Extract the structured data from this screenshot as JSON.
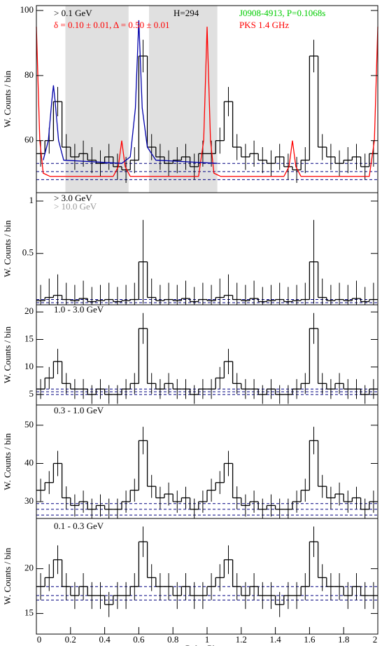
{
  "chart_data": [
    {
      "type": "histogram",
      "ylabel": "W. Counts / bin",
      "annotations": [
        {
          "text": "> 0.1 GeV",
          "color": "#000000"
        },
        {
          "text": "H=294",
          "color": "#000000"
        },
        {
          "text": "δ = 0.10 ± 0.01, Δ = 0.50 ± 0.01",
          "color": "#ff0000"
        },
        {
          "text": "J0908-4913, P=0.1068s",
          "color": "#00cc00"
        },
        {
          "text": "PKS 1.4 GHz",
          "color": "#ff0000"
        }
      ],
      "bins": [
        0,
        0.05,
        0.1,
        0.15,
        0.2,
        0.25,
        0.3,
        0.35,
        0.4,
        0.45,
        0.5,
        0.55,
        0.6,
        0.65,
        0.7,
        0.75,
        0.8,
        0.85,
        0.9,
        0.95,
        1,
        1.05,
        1.1,
        1.15,
        1.2,
        1.25,
        1.3,
        1.35,
        1.4,
        1.45,
        1.5,
        1.55,
        1.6,
        1.65,
        1.7,
        1.75,
        1.8,
        1.85,
        1.9,
        1.95,
        2
      ],
      "counts": [
        56,
        60,
        72,
        58,
        55,
        56,
        54,
        53,
        55,
        52,
        51,
        54,
        86,
        58,
        55,
        53,
        54,
        55,
        52,
        56,
        56,
        60,
        72,
        58,
        55,
        56,
        54,
        53,
        55,
        52,
        51,
        54,
        86,
        58,
        55,
        53,
        54,
        55,
        52,
        56
      ],
      "errors": [
        4,
        4,
        4.5,
        4,
        4,
        4,
        4,
        4,
        4,
        4,
        4,
        4,
        5,
        4,
        4,
        4,
        4,
        4,
        4,
        4,
        4,
        4,
        4.5,
        4,
        4,
        4,
        4,
        4,
        4,
        4,
        4,
        4,
        5,
        4,
        4,
        4,
        4,
        4,
        4,
        4
      ],
      "reference_lines": [
        53,
        50.5,
        48
      ],
      "shaded_regions": [
        [
          0.17,
          0.54
        ],
        [
          0.66,
          1.06
        ]
      ],
      "series": [
        {
          "color": "#ff0000",
          "x": [
            0,
            0.02,
            0.04,
            0.08,
            0.45,
            0.48,
            0.5,
            0.52,
            0.55,
            0.95,
            0.98,
            1,
            1.02,
            1.04,
            1.08,
            1.45,
            1.48,
            1.5,
            1.52,
            1.55,
            1.95,
            1.98,
            2
          ],
          "values": [
            95,
            60,
            50,
            49,
            49,
            52,
            60,
            52,
            49,
            49,
            60,
            95,
            60,
            50,
            49,
            49,
            52,
            60,
            52,
            49,
            49,
            60,
            95
          ]
        },
        {
          "color": "#0000aa",
          "x": [
            0.04,
            0.07,
            0.09,
            0.1,
            0.11,
            0.13,
            0.16,
            0.5,
            0.55,
            0.58,
            0.6,
            0.62,
            0.65,
            0.7,
            1.06
          ],
          "values": [
            54,
            60,
            72,
            77,
            72,
            60,
            54,
            53,
            55,
            70,
            97,
            70,
            58,
            54,
            53
          ]
        }
      ],
      "xlim": [
        0,
        2
      ],
      "ylim": [
        44,
        101.5
      ],
      "yticks": [
        60,
        80,
        100
      ]
    },
    {
      "type": "histogram",
      "ylabel": "W. Counts / bin",
      "annotations": [
        {
          "text": "> 3.0 GeV",
          "color": "#000000"
        },
        {
          "text": "> 10.0 GeV",
          "color": "#999999"
        }
      ],
      "bins": [
        0,
        0.05,
        0.1,
        0.15,
        0.2,
        0.25,
        0.3,
        0.35,
        0.4,
        0.45,
        0.5,
        0.55,
        0.6,
        0.65,
        0.7,
        0.75,
        0.8,
        0.85,
        0.9,
        0.95,
        1,
        1.05,
        1.1,
        1.15,
        1.2,
        1.25,
        1.3,
        1.35,
        1.4,
        1.45,
        1.5,
        1.55,
        1.6,
        1.65,
        1.7,
        1.75,
        1.8,
        1.85,
        1.9,
        1.95,
        2
      ],
      "counts": [
        0.05,
        0.08,
        0.1,
        0.06,
        0.05,
        0.07,
        0.04,
        0.05,
        0.06,
        0.04,
        0.05,
        0.06,
        0.42,
        0.08,
        0.05,
        0.06,
        0.05,
        0.07,
        0.04,
        0.06,
        0.05,
        0.08,
        0.1,
        0.06,
        0.05,
        0.07,
        0.04,
        0.05,
        0.06,
        0.04,
        0.05,
        0.06,
        0.42,
        0.08,
        0.05,
        0.06,
        0.05,
        0.07,
        0.04,
        0.06
      ],
      "errors": [
        0.15,
        0.18,
        0.2,
        0.16,
        0.15,
        0.17,
        0.14,
        0.15,
        0.16,
        0.14,
        0.15,
        0.16,
        0.4,
        0.18,
        0.15,
        0.16,
        0.15,
        0.17,
        0.14,
        0.16,
        0.15,
        0.18,
        0.2,
        0.16,
        0.15,
        0.17,
        0.14,
        0.15,
        0.16,
        0.14,
        0.15,
        0.16,
        0.4,
        0.18,
        0.15,
        0.16,
        0.15,
        0.17,
        0.14,
        0.16
      ],
      "reference_lines": [
        0.03,
        0.06
      ],
      "xlim": [
        0,
        2
      ],
      "ylim": [
        0.01,
        1.08
      ],
      "yticks": [
        0.5,
        1
      ]
    },
    {
      "type": "histogram",
      "ylabel": "W. Counts / bin",
      "annotations": [
        {
          "text": "1.0 - 3.0 GeV",
          "color": "#000000"
        }
      ],
      "bins": [
        0,
        0.05,
        0.1,
        0.15,
        0.2,
        0.25,
        0.3,
        0.35,
        0.4,
        0.45,
        0.5,
        0.55,
        0.6,
        0.65,
        0.7,
        0.75,
        0.8,
        0.85,
        0.9,
        0.95,
        1,
        1.05,
        1.1,
        1.15,
        1.2,
        1.25,
        1.3,
        1.35,
        1.4,
        1.45,
        1.5,
        1.55,
        1.6,
        1.65,
        1.7,
        1.75,
        1.8,
        1.85,
        1.9,
        1.95,
        2
      ],
      "counts": [
        6,
        8,
        11,
        7,
        6,
        6,
        5,
        6,
        5,
        5,
        6,
        7,
        17,
        7,
        6,
        7,
        6,
        6,
        5,
        6,
        6,
        8,
        11,
        7,
        6,
        6,
        5,
        6,
        5,
        5,
        6,
        7,
        17,
        7,
        6,
        7,
        6,
        6,
        5,
        6
      ],
      "errors": [
        1.8,
        2,
        2.3,
        1.9,
        1.8,
        1.8,
        1.7,
        1.8,
        1.7,
        1.7,
        1.8,
        1.9,
        2.8,
        1.9,
        1.8,
        1.9,
        1.8,
        1.8,
        1.7,
        1.8,
        1.8,
        2,
        2.3,
        1.9,
        1.8,
        1.8,
        1.7,
        1.8,
        1.7,
        1.7,
        1.8,
        1.9,
        2.8,
        1.9,
        1.8,
        1.9,
        1.8,
        1.8,
        1.7,
        1.8
      ],
      "reference_lines": [
        5,
        5.5,
        6
      ],
      "xlim": [
        0,
        2
      ],
      "ylim": [
        3.1,
        21.3
      ],
      "yticks": [
        5,
        10,
        15,
        20
      ]
    },
    {
      "type": "histogram",
      "ylabel": "W. Counts / bin",
      "annotations": [
        {
          "text": "0.3 - 1.0 GeV",
          "color": "#000000"
        }
      ],
      "bins": [
        0,
        0.05,
        0.1,
        0.15,
        0.2,
        0.25,
        0.3,
        0.35,
        0.4,
        0.45,
        0.5,
        0.55,
        0.6,
        0.65,
        0.7,
        0.75,
        0.8,
        0.85,
        0.9,
        0.95,
        1,
        1.05,
        1.1,
        1.15,
        1.2,
        1.25,
        1.3,
        1.35,
        1.4,
        1.45,
        1.5,
        1.55,
        1.6,
        1.65,
        1.7,
        1.75,
        1.8,
        1.85,
        1.9,
        1.95,
        2
      ],
      "counts": [
        33,
        35,
        40,
        31,
        29,
        30,
        28,
        29,
        28,
        28,
        30,
        33,
        46,
        34,
        31,
        32,
        30,
        31,
        28,
        30,
        33,
        35,
        40,
        31,
        29,
        30,
        28,
        29,
        28,
        28,
        30,
        33,
        46,
        34,
        31,
        32,
        30,
        31,
        28,
        30
      ],
      "errors": [
        3,
        3,
        3.3,
        3,
        2.9,
        2.9,
        2.8,
        2.9,
        2.8,
        2.8,
        2.9,
        3,
        3.6,
        3,
        2.9,
        3,
        2.9,
        2.9,
        2.8,
        2.9,
        3,
        3,
        3.3,
        3,
        2.9,
        2.9,
        2.8,
        2.9,
        2.8,
        2.8,
        2.9,
        3,
        3.6,
        3,
        2.9,
        3,
        2.9,
        2.9,
        2.8,
        2.9
      ],
      "reference_lines": [
        26.5,
        28,
        29.5
      ],
      "xlim": [
        0,
        2
      ],
      "ylim": [
        25.6,
        55.3
      ],
      "yticks": [
        30,
        40,
        50
      ]
    },
    {
      "type": "histogram",
      "ylabel": "W. Counts / bin",
      "xlabel": "Pulse Phase",
      "annotations": [
        {
          "text": "0.1 - 0.3 GeV",
          "color": "#000000"
        }
      ],
      "bins": [
        0,
        0.05,
        0.1,
        0.15,
        0.2,
        0.25,
        0.3,
        0.35,
        0.4,
        0.45,
        0.5,
        0.55,
        0.6,
        0.65,
        0.7,
        0.75,
        0.8,
        0.85,
        0.9,
        0.95,
        1,
        1.05,
        1.1,
        1.15,
        1.2,
        1.25,
        1.3,
        1.35,
        1.4,
        1.45,
        1.5,
        1.55,
        1.6,
        1.65,
        1.7,
        1.75,
        1.8,
        1.85,
        1.9,
        1.95,
        2
      ],
      "counts": [
        18,
        19,
        21,
        18,
        17,
        18,
        17,
        17,
        16,
        17,
        17,
        18,
        23,
        19,
        18,
        18,
        17,
        18,
        17,
        17,
        18,
        19,
        21,
        18,
        17,
        18,
        17,
        17,
        16,
        17,
        17,
        18,
        23,
        19,
        18,
        18,
        17,
        18,
        17,
        17
      ],
      "errors": [
        1.5,
        1.5,
        1.6,
        1.5,
        1.5,
        1.5,
        1.5,
        1.5,
        1.4,
        1.5,
        1.5,
        1.5,
        1.7,
        1.5,
        1.5,
        1.5,
        1.5,
        1.5,
        1.5,
        1.5,
        1.5,
        1.5,
        1.6,
        1.5,
        1.5,
        1.5,
        1.5,
        1.5,
        1.4,
        1.5,
        1.5,
        1.5,
        1.7,
        1.5,
        1.5,
        1.5,
        1.5,
        1.5,
        1.5,
        1.5
      ],
      "reference_lines": [
        16.5,
        17,
        18
      ],
      "xlim": [
        0,
        2
      ],
      "ylim": [
        12.7,
        25.6
      ],
      "yticks": [
        15,
        20
      ],
      "xticks": [
        0,
        0.2,
        0.4,
        0.6,
        0.8,
        1,
        1.2,
        1.4,
        1.6,
        1.8,
        2
      ]
    }
  ]
}
